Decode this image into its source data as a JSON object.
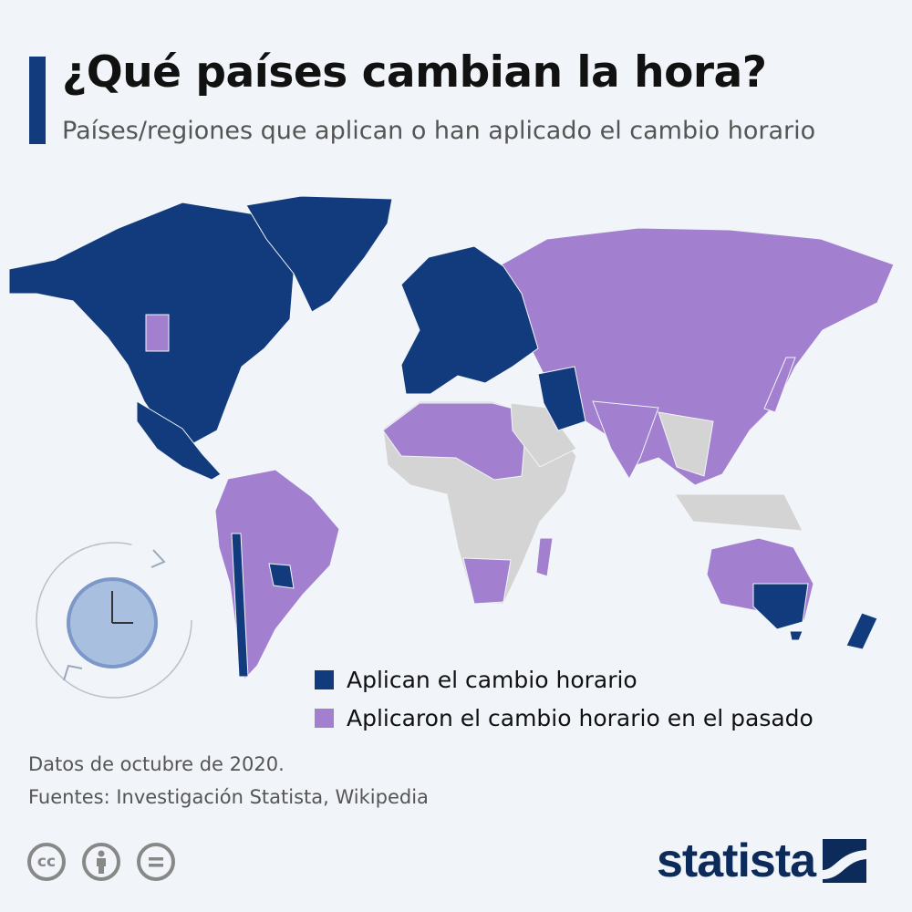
{
  "header": {
    "title": "¿Qué países cambian la hora?",
    "subtitle": "Países/regiones que aplican o han aplicado el cambio horario"
  },
  "colors": {
    "current": "#123b7d",
    "past": "#a27fcf",
    "none": "#d4d4d4",
    "background": "#f1f5f9"
  },
  "legend": [
    {
      "label": "Aplican el cambio horario",
      "color": "#123b7d"
    },
    {
      "label": "Aplicaron el cambio horario en el pasado",
      "color": "#a27fcf"
    }
  ],
  "footer": {
    "note": "Datos de octubre de 2020.",
    "sources": "Fuentes: Investigación Statista, Wikipedia"
  },
  "license_icons": [
    "cc-icon",
    "attribution-icon",
    "no-derivatives-icon"
  ],
  "brand": {
    "logo": "statista"
  },
  "decoration": {
    "icon": "clock-icon"
  }
}
